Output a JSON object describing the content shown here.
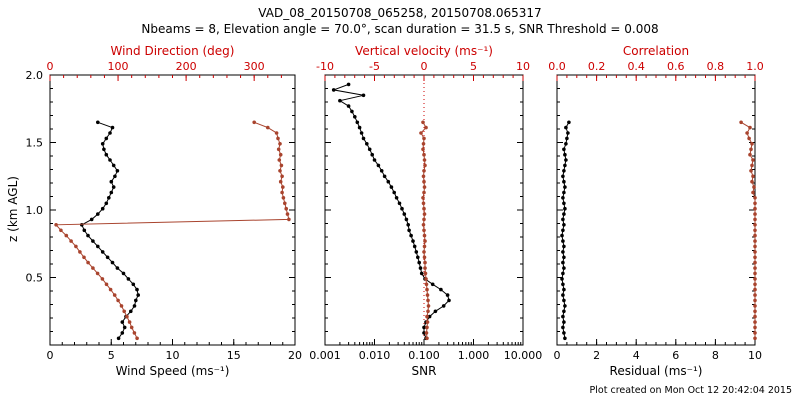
{
  "title": "VAD_08_20150708_065258, 20150708.065317",
  "subtitle": "Nbeams = 8, Elevation angle = 70.0°, scan duration = 31.5 s, SNR Threshold = 0.008",
  "footer": "Plot created on Mon Oct 12 20:42:04 2015",
  "colors": {
    "axis_red": "#cc0000",
    "series_red": "#a9442e",
    "black": "#000000",
    "background": "#ffffff"
  },
  "chart_data": [
    {
      "type": "line",
      "ylabel": "z (km AGL)",
      "y_axis": {
        "range": [
          0,
          2
        ],
        "ticks": [
          0.5,
          1.0,
          1.5,
          2.0
        ],
        "tick_labels": [
          "0.5",
          "1.0",
          "1.5",
          "2.0"
        ],
        "minor": 0.1,
        "show_labels": true
      },
      "x_bottom": {
        "label": "Wind Speed (ms⁻¹)",
        "scale": "linear",
        "range": [
          0,
          20
        ],
        "ticks": [
          0,
          5,
          10,
          15,
          20
        ],
        "tick_labels": [
          "0",
          "5",
          "10",
          "15",
          "20"
        ],
        "minor": 1,
        "color": "black"
      },
      "x_top": {
        "label": "Wind Direction (deg)",
        "scale": "linear",
        "range": [
          0,
          360
        ],
        "ticks": [
          0,
          100,
          200,
          300
        ],
        "tick_labels": [
          "0",
          "100",
          "200",
          "300"
        ],
        "minor": 20,
        "color": "red"
      },
      "series": [
        {
          "name": "wind_speed",
          "axis": "bottom",
          "color": "black",
          "z": [
            0.05,
            0.09,
            0.13,
            0.17,
            0.21,
            0.25,
            0.29,
            0.33,
            0.37,
            0.41,
            0.45,
            0.49,
            0.53,
            0.57,
            0.61,
            0.65,
            0.69,
            0.73,
            0.77,
            0.81,
            0.85,
            0.89,
            0.93,
            0.97,
            1.01,
            1.05,
            1.09,
            1.13,
            1.17,
            1.21,
            1.25,
            1.29,
            1.33,
            1.37,
            1.41,
            1.45,
            1.49,
            1.53,
            1.57,
            1.61,
            1.65
          ],
          "v": [
            5.6,
            5.9,
            6.1,
            5.9,
            6.2,
            6.6,
            6.9,
            7.0,
            7.2,
            7.1,
            6.8,
            6.4,
            6.0,
            5.5,
            5.1,
            4.7,
            4.3,
            3.9,
            3.5,
            3.1,
            2.8,
            2.6,
            3.4,
            3.9,
            4.3,
            4.6,
            4.8,
            5.0,
            5.2,
            5.0,
            5.3,
            5.5,
            5.2,
            4.9,
            4.6,
            4.4,
            4.3,
            4.6,
            4.9,
            5.1,
            3.9
          ]
        },
        {
          "name": "wind_direction",
          "axis": "top",
          "color": "red",
          "z": [
            0.05,
            0.09,
            0.13,
            0.17,
            0.21,
            0.25,
            0.29,
            0.33,
            0.37,
            0.41,
            0.45,
            0.49,
            0.53,
            0.57,
            0.61,
            0.65,
            0.69,
            0.73,
            0.77,
            0.81,
            0.85,
            0.89,
            0.93,
            0.97,
            1.01,
            1.05,
            1.09,
            1.13,
            1.17,
            1.21,
            1.25,
            1.29,
            1.33,
            1.37,
            1.41,
            1.45,
            1.49,
            1.53,
            1.57,
            1.61,
            1.65
          ],
          "v": [
            128,
            124,
            120,
            117,
            113,
            109,
            105,
            100,
            95,
            89,
            83,
            77,
            70,
            63,
            56,
            50,
            44,
            38,
            31,
            24,
            16,
            9,
            351,
            349,
            347,
            345,
            343,
            341,
            342,
            339,
            341,
            338,
            340,
            337,
            339,
            336,
            338,
            335,
            333,
            320,
            300
          ]
        }
      ]
    },
    {
      "type": "line",
      "y_axis": {
        "range": [
          0,
          2
        ],
        "ticks": [
          0.5,
          1.0,
          1.5,
          2.0
        ],
        "tick_labels": [
          "0.5",
          "1.0",
          "1.5",
          "2.0"
        ],
        "minor": 0.1,
        "show_labels": false
      },
      "x_bottom": {
        "label": "SNR",
        "scale": "log",
        "range": [
          0.001,
          10
        ],
        "ticks": [
          0.001,
          0.01,
          0.1,
          1,
          10
        ],
        "tick_labels": [
          "0.001",
          "0.010",
          "0.100",
          "1.000",
          "10.000"
        ],
        "color": "black"
      },
      "x_top": {
        "label": "Vertical velocity (ms⁻¹)",
        "scale": "linear",
        "range": [
          -10,
          10
        ],
        "ticks": [
          -10,
          -5,
          0,
          5,
          10
        ],
        "tick_labels": [
          "-10",
          "-5",
          "0",
          "5",
          "10"
        ],
        "minor": 1,
        "color": "red"
      },
      "zero_line": {
        "axis": "top",
        "value": 0,
        "style": "dotted",
        "color": "red"
      },
      "series": [
        {
          "name": "snr",
          "axis": "bottom",
          "color": "black",
          "z": [
            0.05,
            0.09,
            0.13,
            0.17,
            0.21,
            0.25,
            0.29,
            0.33,
            0.37,
            0.41,
            0.45,
            0.49,
            0.53,
            0.57,
            0.61,
            0.65,
            0.69,
            0.73,
            0.77,
            0.81,
            0.85,
            0.89,
            0.93,
            0.97,
            1.01,
            1.05,
            1.09,
            1.13,
            1.17,
            1.21,
            1.25,
            1.29,
            1.33,
            1.37,
            1.41,
            1.45,
            1.49,
            1.53,
            1.57,
            1.61,
            1.65,
            1.69,
            1.73,
            1.77,
            1.81,
            1.85,
            1.89,
            1.93
          ],
          "v": [
            0.11,
            0.1,
            0.1,
            0.11,
            0.13,
            0.17,
            0.25,
            0.32,
            0.3,
            0.22,
            0.15,
            0.105,
            0.09,
            0.085,
            0.08,
            0.075,
            0.07,
            0.065,
            0.06,
            0.055,
            0.05,
            0.048,
            0.044,
            0.04,
            0.036,
            0.032,
            0.028,
            0.025,
            0.022,
            0.019,
            0.016,
            0.014,
            0.012,
            0.01,
            0.009,
            0.008,
            0.007,
            0.006,
            0.0055,
            0.005,
            0.0045,
            0.004,
            0.0035,
            0.003,
            0.002,
            0.006,
            0.0015,
            0.003
          ]
        },
        {
          "name": "vertical_velocity",
          "axis": "top",
          "color": "red",
          "z": [
            0.05,
            0.09,
            0.13,
            0.17,
            0.21,
            0.25,
            0.29,
            0.33,
            0.37,
            0.41,
            0.45,
            0.49,
            0.53,
            0.57,
            0.61,
            0.65,
            0.69,
            0.73,
            0.77,
            0.81,
            0.85,
            0.89,
            0.93,
            0.97,
            1.01,
            1.05,
            1.09,
            1.13,
            1.17,
            1.21,
            1.25,
            1.29,
            1.33,
            1.37,
            1.41,
            1.45,
            1.49,
            1.53,
            1.57,
            1.61,
            1.65
          ],
          "v": [
            0.3,
            0.25,
            0.3,
            0.35,
            0.3,
            0.4,
            0.45,
            0.4,
            0.35,
            0.3,
            0.25,
            0.2,
            0.15,
            0.1,
            0.1,
            0.05,
            0.0,
            0.05,
            0.1,
            0.05,
            0.0,
            -0.05,
            0.0,
            0.05,
            0.0,
            -0.05,
            -0.1,
            0.0,
            0.05,
            0.0,
            -0.05,
            0.0,
            0.1,
            0.05,
            0.0,
            -0.1,
            -0.05,
            0.0,
            -0.3,
            0.2,
            -0.1
          ]
        }
      ]
    },
    {
      "type": "line",
      "y_axis": {
        "range": [
          0,
          2
        ],
        "ticks": [
          0.5,
          1.0,
          1.5,
          2.0
        ],
        "tick_labels": [
          "0.5",
          "1.0",
          "1.5",
          "2.0"
        ],
        "minor": 0.1,
        "show_labels": false
      },
      "x_bottom": {
        "label": "Residual (ms⁻¹)",
        "scale": "linear",
        "range": [
          0,
          10
        ],
        "ticks": [
          0,
          2,
          4,
          6,
          8,
          10
        ],
        "tick_labels": [
          "0",
          "2",
          "4",
          "6",
          "8",
          "10"
        ],
        "minor": 0.5,
        "color": "black"
      },
      "x_top": {
        "label": "Correlation",
        "scale": "linear",
        "range": [
          0,
          1
        ],
        "ticks": [
          0.0,
          0.2,
          0.4,
          0.6,
          0.8,
          1.0
        ],
        "tick_labels": [
          "0.0",
          "0.2",
          "0.4",
          "0.6",
          "0.8",
          "1.0"
        ],
        "minor": 0.05,
        "color": "red"
      },
      "series": [
        {
          "name": "residual",
          "axis": "bottom",
          "color": "black",
          "z": [
            0.05,
            0.09,
            0.13,
            0.17,
            0.21,
            0.25,
            0.29,
            0.33,
            0.37,
            0.41,
            0.45,
            0.49,
            0.53,
            0.57,
            0.61,
            0.65,
            0.69,
            0.73,
            0.77,
            0.81,
            0.85,
            0.89,
            0.93,
            0.97,
            1.01,
            1.05,
            1.09,
            1.13,
            1.17,
            1.21,
            1.25,
            1.29,
            1.33,
            1.37,
            1.41,
            1.45,
            1.49,
            1.53,
            1.57,
            1.61,
            1.65
          ],
          "v": [
            0.4,
            0.35,
            0.3,
            0.35,
            0.3,
            0.35,
            0.4,
            0.35,
            0.3,
            0.35,
            0.3,
            0.25,
            0.3,
            0.35,
            0.3,
            0.35,
            0.3,
            0.35,
            0.3,
            0.25,
            0.3,
            0.35,
            0.3,
            0.35,
            0.4,
            0.35,
            0.3,
            0.35,
            0.4,
            0.35,
            0.3,
            0.35,
            0.4,
            0.45,
            0.4,
            0.35,
            0.45,
            0.5,
            0.55,
            0.45,
            0.6
          ]
        },
        {
          "name": "correlation",
          "axis": "top",
          "color": "red",
          "z": [
            0.05,
            0.09,
            0.13,
            0.17,
            0.21,
            0.25,
            0.29,
            0.33,
            0.37,
            0.41,
            0.45,
            0.49,
            0.53,
            0.57,
            0.61,
            0.65,
            0.69,
            0.73,
            0.77,
            0.81,
            0.85,
            0.89,
            0.93,
            0.97,
            1.01,
            1.05,
            1.09,
            1.13,
            1.17,
            1.21,
            1.25,
            1.29,
            1.33,
            1.37,
            1.41,
            1.45,
            1.49,
            1.53,
            1.57,
            1.61,
            1.65
          ],
          "v": [
            1.0,
            1.0,
            1.0,
            1.0,
            1.0,
            1.0,
            1.0,
            1.0,
            1.0,
            1.0,
            1.0,
            1.0,
            1.0,
            1.0,
            1.0,
            1.0,
            1.0,
            1.0,
            1.0,
            1.0,
            1.0,
            1.0,
            1.0,
            1.0,
            1.0,
            1.0,
            1.0,
            0.99,
            0.995,
            0.985,
            0.99,
            0.98,
            0.985,
            0.99,
            0.975,
            0.98,
            0.985,
            0.97,
            0.96,
            0.975,
            0.93
          ]
        }
      ]
    }
  ]
}
